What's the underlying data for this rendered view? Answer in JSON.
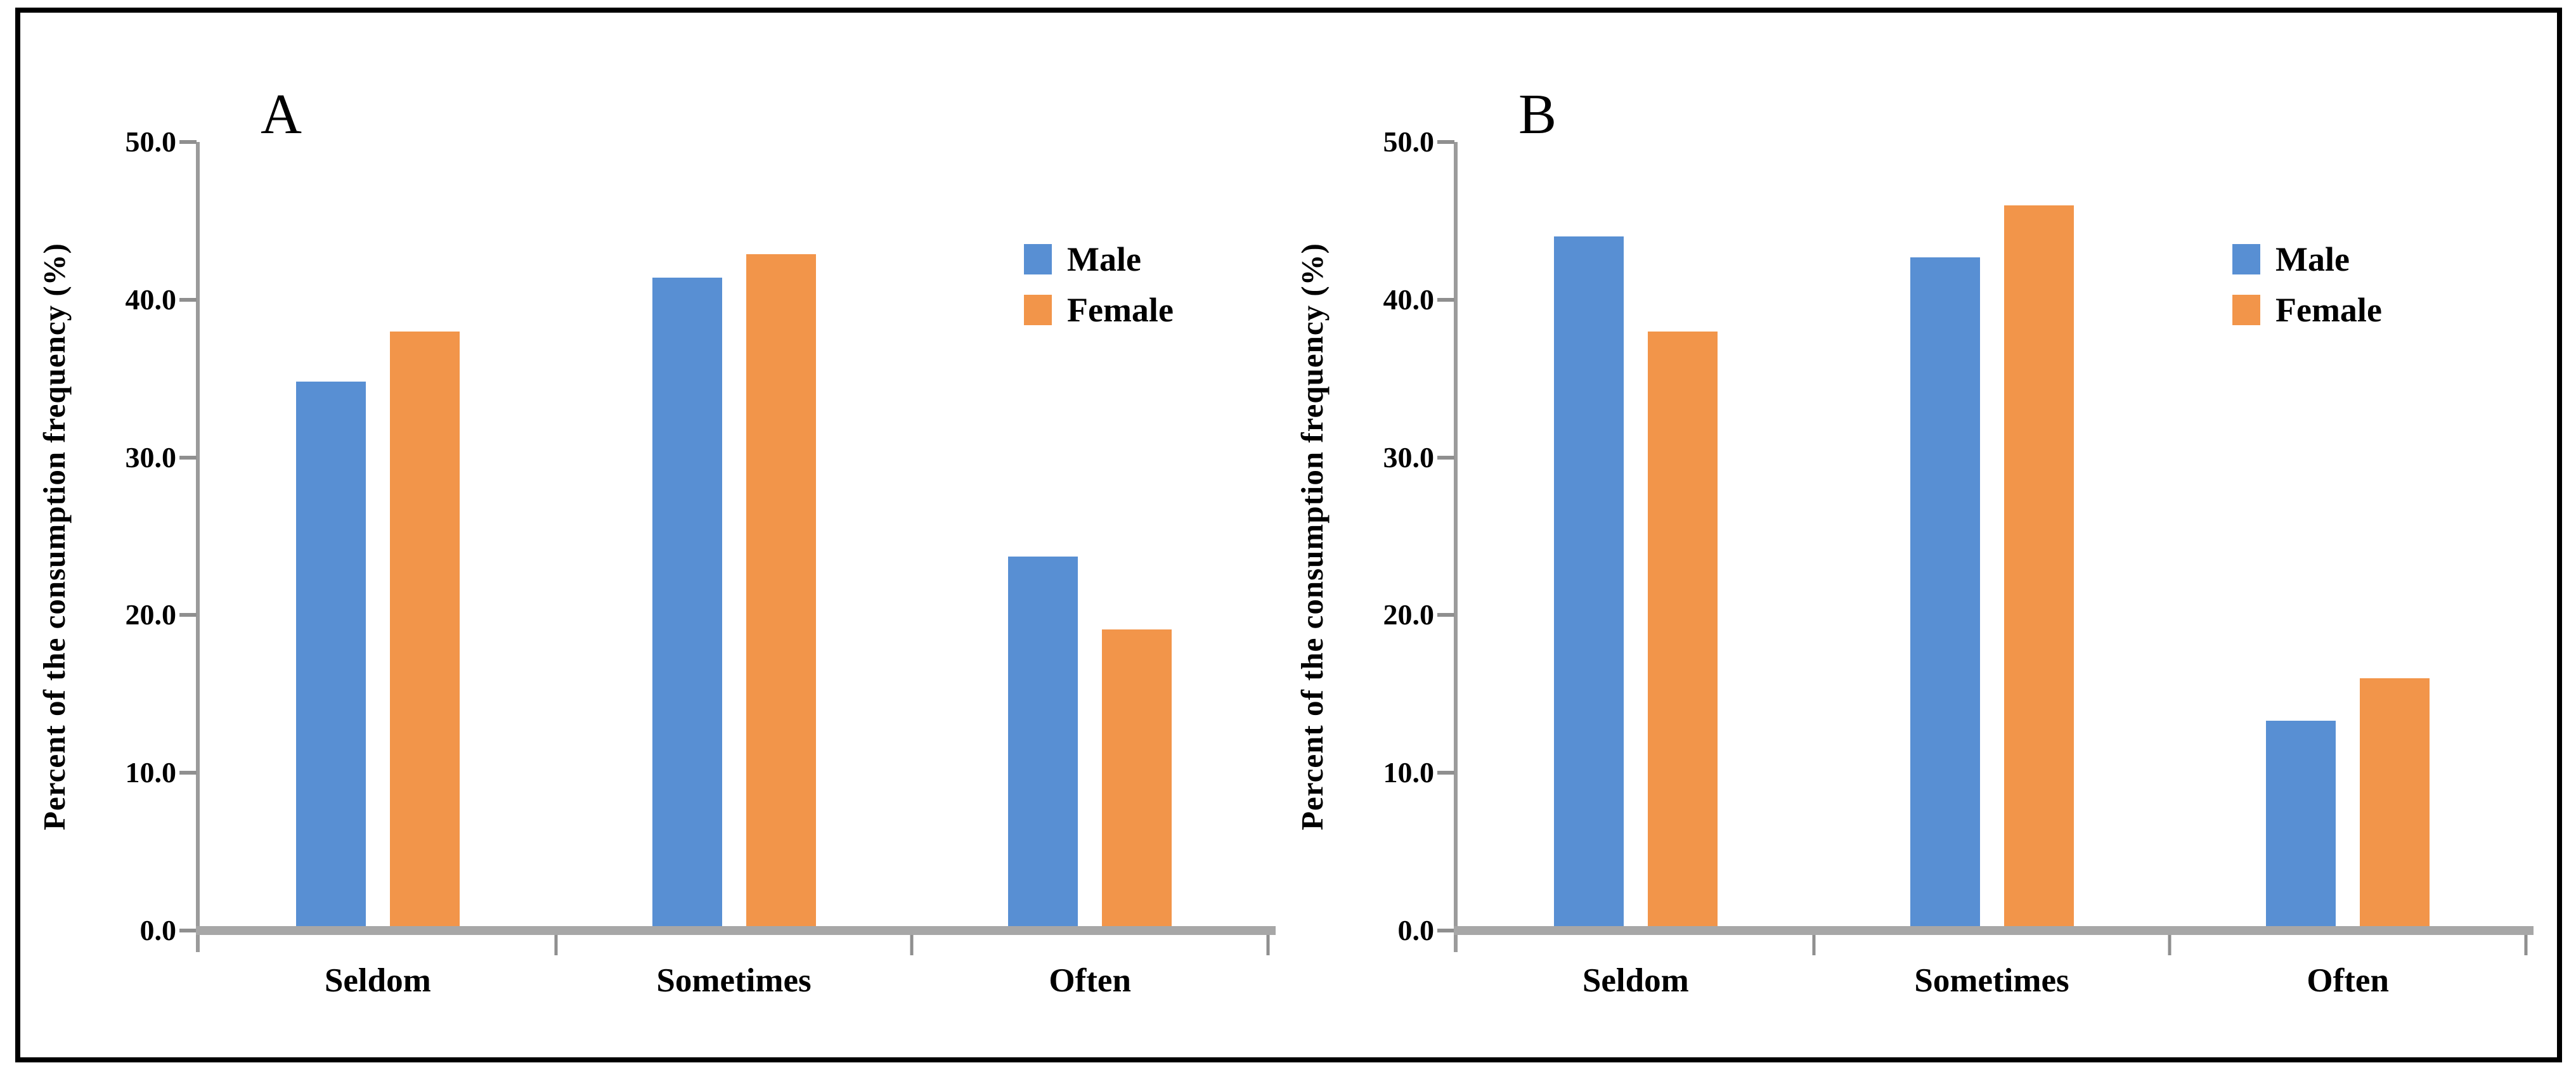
{
  "figure": {
    "background": "#ffffff",
    "border_color": "#000000"
  },
  "chart_data": [
    {
      "type": "bar",
      "panel_label": "A",
      "title": "",
      "ylabel": "Percent of the consumption frequency (%)",
      "xlabel": "",
      "ylim": [
        0,
        50
      ],
      "yticks": [
        "0.0",
        "10.0",
        "20.0",
        "30.0",
        "40.0",
        "50.0"
      ],
      "categories": [
        "Seldom",
        "Sometimes",
        "Often"
      ],
      "series": [
        {
          "name": "Male",
          "color": "#588FD3",
          "values": [
            34.8,
            41.4,
            23.7
          ]
        },
        {
          "name": "Female",
          "color": "#F2954A",
          "values": [
            38.0,
            42.9,
            19.1
          ]
        }
      ],
      "legend_position": "upper right",
      "grid": false
    },
    {
      "type": "bar",
      "panel_label": "B",
      "title": "",
      "ylabel": "Percent of the consumption frequency (%)",
      "xlabel": "",
      "ylim": [
        0,
        50
      ],
      "yticks": [
        "0.0",
        "10.0",
        "20.0",
        "30.0",
        "40.0",
        "50.0"
      ],
      "categories": [
        "Seldom",
        "Sometimes",
        "Often"
      ],
      "series": [
        {
          "name": "Male",
          "color": "#588FD3",
          "values": [
            44.0,
            42.7,
            13.3
          ]
        },
        {
          "name": "Female",
          "color": "#F2954A",
          "values": [
            38.0,
            46.0,
            16.0
          ]
        }
      ],
      "legend_position": "upper right",
      "grid": false
    }
  ],
  "axis_colors": {
    "baseline": "#a7a7a7",
    "tick": "#8f8f8f",
    "axis_line": "#9b9b9b"
  }
}
